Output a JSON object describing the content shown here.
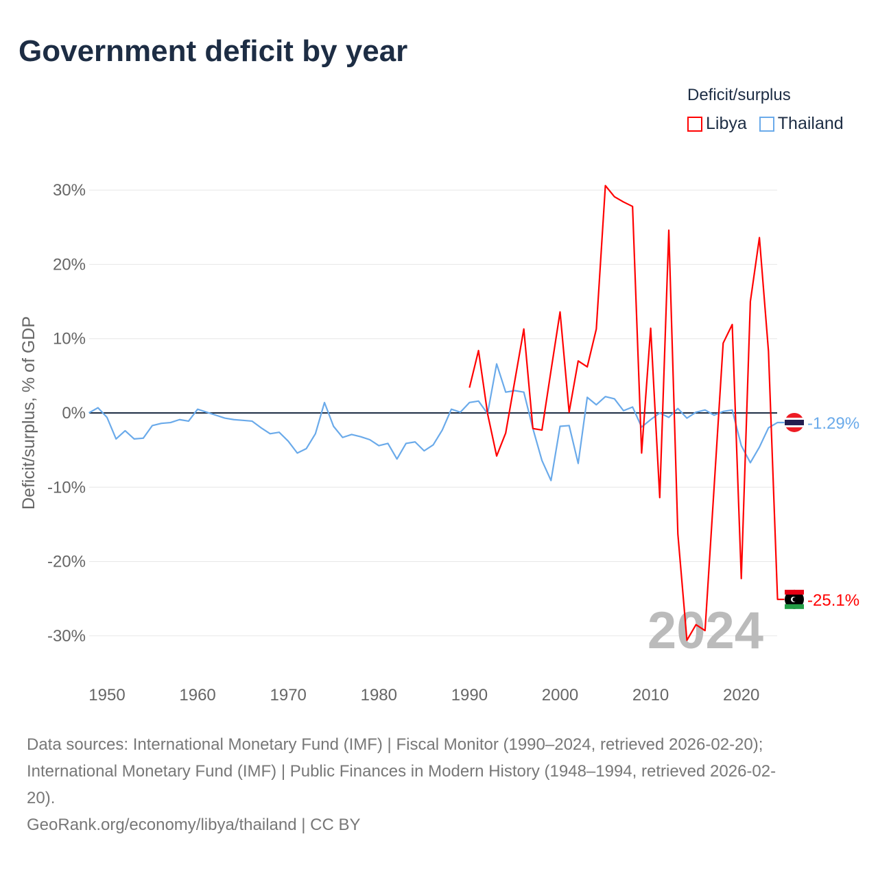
{
  "title": "Government deficit by year",
  "legend": {
    "title": "Deficit/surplus",
    "items": [
      {
        "name": "Libya",
        "color": "#ff0000"
      },
      {
        "name": "Thailand",
        "color": "#6aaaea"
      }
    ]
  },
  "year_label": "2024",
  "source_lines": [
    "Data sources: International Monetary Fund (IMF) | Fiscal Monitor (1990–2024, retrieved 2026-02-20);",
    "International Monetary Fund (IMF) | Public Finances in Modern History (1948–1994, retrieved 2026-02-",
    "20).",
    "GeoRank.org/economy/libya/thailand | CC BY"
  ],
  "chart_data": {
    "type": "line",
    "title": "Government deficit by year",
    "xlabel": "",
    "ylabel": "Deficit/surplus, % of GDP",
    "xlim": [
      1948,
      2024
    ],
    "ylim": [
      -33,
      31
    ],
    "xticks": [
      1950,
      1960,
      1970,
      1980,
      1990,
      2000,
      2010,
      2020
    ],
    "yticks": [
      30,
      20,
      10,
      0,
      -10,
      -20,
      -30
    ],
    "ytick_labels": [
      "30%",
      "20%",
      "10%",
      "0%",
      "-10%",
      "-20%",
      "-30%"
    ],
    "grid": true,
    "legend_position": "top-right",
    "series": [
      {
        "name": "Thailand",
        "color": "#6aaaea",
        "end_label": "-1.29%",
        "start": 1948,
        "values": [
          0,
          0.7,
          -0.6,
          -3.5,
          -2.4,
          -3.5,
          -3.4,
          -1.7,
          -1.4,
          -1.3,
          -0.9,
          -1.1,
          0.5,
          0.1,
          -0.3,
          -0.7,
          -0.9,
          -1.0,
          -1.1,
          -2.0,
          -2.8,
          -2.6,
          -3.8,
          -5.4,
          -4.8,
          -2.8,
          1.4,
          -1.8,
          -3.3,
          -2.9,
          -3.2,
          -3.6,
          -4.4,
          -4.1,
          -6.2,
          -4.1,
          -3.9,
          -5.1,
          -4.3,
          -2.3,
          0.5,
          0.1,
          1.4,
          1.6,
          -0.1,
          6.6,
          2.8,
          3.0,
          2.8,
          -2.1,
          -6.4,
          -9.1,
          -1.8,
          -1.7,
          -6.8,
          2.1,
          1.1,
          2.2,
          1.9,
          0.3,
          0.8,
          -1.9,
          -0.9,
          0,
          -0.6,
          0.6,
          -0.7,
          0.1,
          0.4,
          -0.3,
          0.2,
          0.4,
          -4.4,
          -6.7,
          -4.6,
          -2.0,
          -1.29
        ]
      },
      {
        "name": "Libya",
        "color": "#ff0000",
        "end_label": "-25.1%",
        "start": 1990,
        "values": [
          3.4,
          8.4,
          -0.1,
          -5.8,
          -2.7,
          4.3,
          11.3,
          -2.1,
          -2.3,
          5.7,
          13.6,
          0.1,
          7.0,
          6.2,
          11.3,
          30.6,
          29.1,
          28.4,
          27.8,
          -5.4,
          11.4,
          -11.4,
          24.6,
          -16.3,
          -30.6,
          -28.5,
          -29.3,
          -10.0,
          9.4,
          11.9,
          -22.3,
          15.0,
          23.6,
          8.3,
          -25.1
        ]
      }
    ]
  }
}
